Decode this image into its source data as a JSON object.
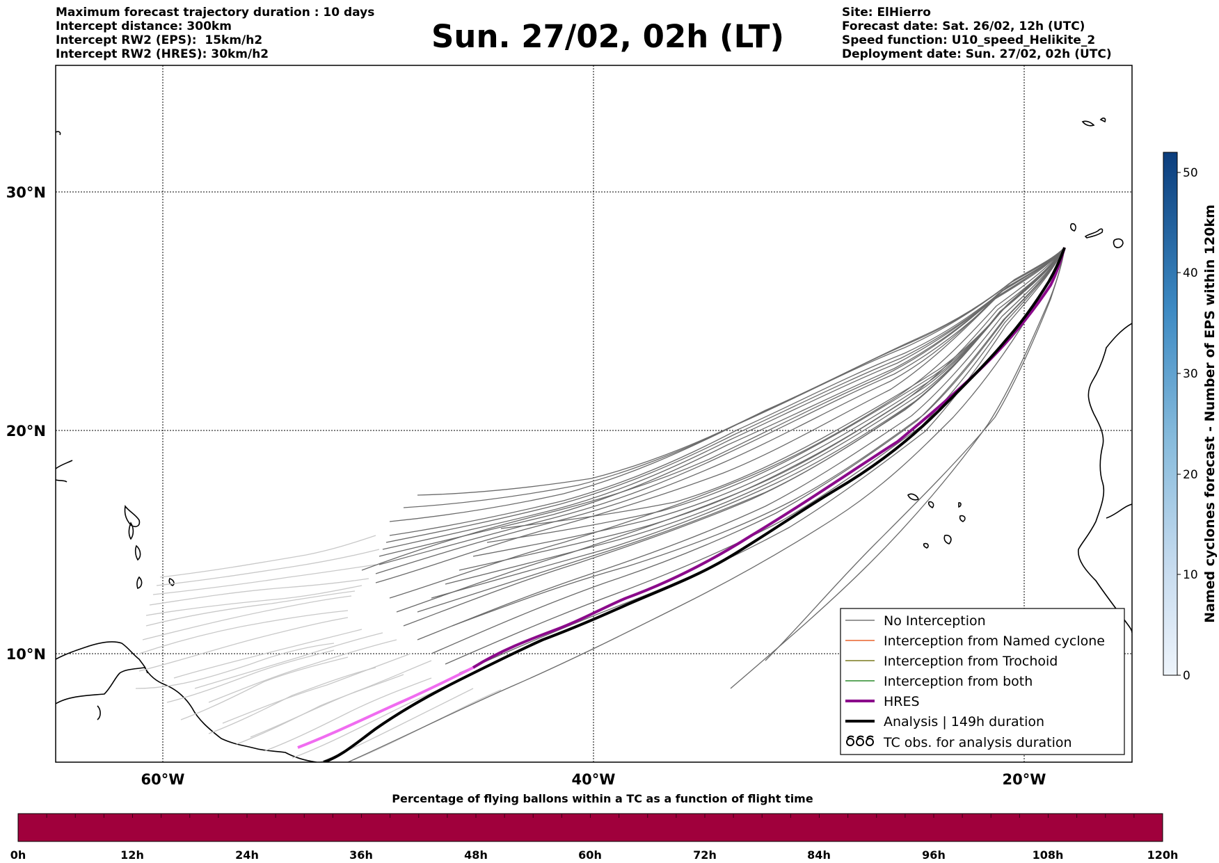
{
  "header": {
    "left_lines": [
      "Maximum forecast trajectory duration : 10 days",
      "Intercept distance: 300km",
      "Intercept RW2 (EPS):  15km/h2",
      "Intercept RW2 (HRES): 30km/h2"
    ],
    "title": "Sun. 27/02, 02h (LT)",
    "right_lines": [
      "Site: ElHierro",
      "Forecast date: Sat. 26/02, 12h (UTC)",
      "Speed function: U10_speed_Helikite_2",
      "Deployment date: Sun. 27/02, 02h (UTC)"
    ]
  },
  "map": {
    "lat_labels": [
      "30°N",
      "20°N",
      "10°N"
    ],
    "lon_labels": [
      "60°W",
      "40°W",
      "20°W"
    ],
    "legend": [
      {
        "label": "No Interception",
        "color": "#777777"
      },
      {
        "label": "Interception from Named cyclone",
        "color": "#e8622c"
      },
      {
        "label": "Interception from Trochoid",
        "color": "#7a7a1e"
      },
      {
        "label": "Interception from both",
        "color": "#2a8a2a"
      },
      {
        "label": "HRES",
        "color": "#8b0a8b"
      },
      {
        "label": "Analysis | 149h duration",
        "color": "#000000"
      },
      {
        "label": "TC obs. for analysis duration",
        "color": "#000000"
      }
    ]
  },
  "colorbar_right": {
    "label": "Named cyclones forecast - Number of EPS within 120km",
    "ticks": [
      "0",
      "10",
      "20",
      "30",
      "40",
      "50"
    ]
  },
  "colorbar_bottom": {
    "title": "Percentage of flying ballons within a TC as a function of flight time",
    "color": "#a0003c",
    "ticks": [
      "0h",
      "12h",
      "24h",
      "36h",
      "48h",
      "60h",
      "72h",
      "84h",
      "96h",
      "108h",
      "120h"
    ]
  }
}
